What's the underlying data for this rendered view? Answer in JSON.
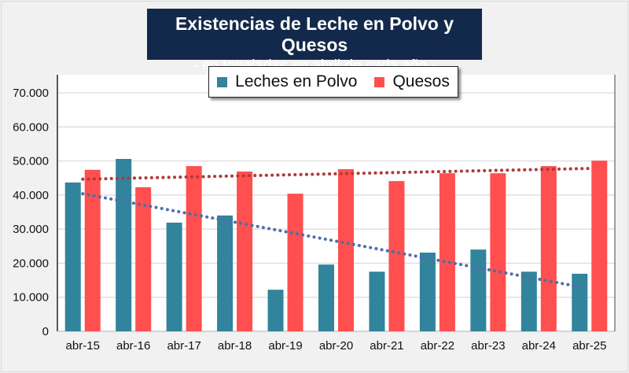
{
  "chart_data": {
    "type": "bar",
    "title": "Existencias de Leche en Polvo y Quesos",
    "subtitle": "- en toneladas en abril de cada año -",
    "xlabel": "",
    "ylabel": "",
    "ylim": [
      0,
      70000
    ],
    "yticks": [
      0,
      10000,
      20000,
      30000,
      40000,
      50000,
      60000,
      70000
    ],
    "ytick_labels": [
      "0",
      "10.000",
      "20.000",
      "30.000",
      "40.000",
      "50.000",
      "60.000",
      "70.000"
    ],
    "grid": true,
    "legend_position": "top-center",
    "categories": [
      "abr-15",
      "abr-16",
      "abr-17",
      "abr-18",
      "abr-19",
      "abr-20",
      "abr-21",
      "abr-22",
      "abr-23",
      "abr-24",
      "abr-25"
    ],
    "series": [
      {
        "name": "Leches en Polvo",
        "color": "#31849b",
        "trend_color": "#4f6fa8",
        "trendline": "linear-dotted",
        "values": [
          43700,
          50600,
          31900,
          34000,
          12200,
          19600,
          17500,
          23100,
          24000,
          17500,
          16900
        ]
      },
      {
        "name": "Quesos",
        "color": "#ff4f4f",
        "trend_color": "#b03a3a",
        "trendline": "linear-dotted",
        "values": [
          47400,
          42300,
          48500,
          46900,
          40400,
          47600,
          44100,
          46400,
          46400,
          48500,
          50100
        ]
      }
    ]
  }
}
